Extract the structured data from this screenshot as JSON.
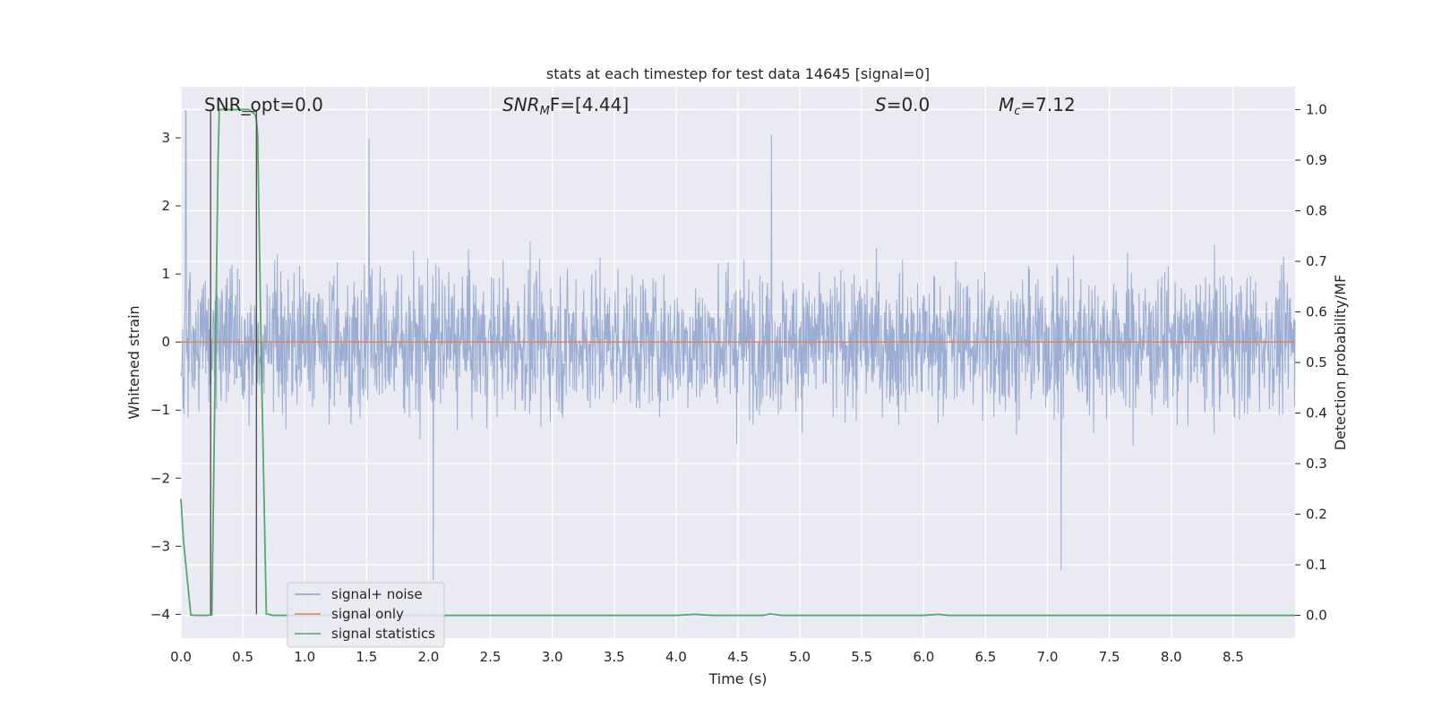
{
  "chart_data": {
    "type": "line",
    "title": "stats at each timestep for test data 14645 [signal=0]",
    "xlabel": "Time (s)",
    "ylabel": "Whitened strain",
    "y2label": "Detection probability/MF",
    "xlim": [
      0,
      9.0
    ],
    "ylim": [
      -4.35,
      3.75
    ],
    "y2lim": [
      -0.045,
      1.045
    ],
    "x_ticks": [
      0.0,
      0.5,
      1.0,
      1.5,
      2.0,
      2.5,
      3.0,
      3.5,
      4.0,
      4.5,
      5.0,
      5.5,
      6.0,
      6.5,
      7.0,
      7.5,
      8.0,
      8.5
    ],
    "x_tick_labels": [
      "0.0",
      "0.5",
      "1.0",
      "1.5",
      "2.0",
      "2.5",
      "3.0",
      "3.5",
      "4.0",
      "4.5",
      "5.0",
      "5.5",
      "6.0",
      "6.5",
      "7.0",
      "7.5",
      "8.0",
      "8.5"
    ],
    "y_ticks": [
      -4,
      -3,
      -2,
      -1,
      0,
      1,
      2,
      3
    ],
    "y_tick_labels": [
      "−4",
      "−3",
      "−2",
      "−1",
      "0",
      "1",
      "2",
      "3"
    ],
    "y2_ticks": [
      0.0,
      0.1,
      0.2,
      0.3,
      0.4,
      0.5,
      0.6,
      0.7,
      0.8,
      0.9,
      1.0
    ],
    "y2_tick_labels": [
      "0.0",
      "0.1",
      "0.2",
      "0.3",
      "0.4",
      "0.5",
      "0.6",
      "0.7",
      "0.8",
      "0.9",
      "1.0"
    ],
    "grid": true,
    "legend_position": "lower-left",
    "annotations": {
      "snr_opt": "SNR_opt=0.0",
      "snr_mf_main": "SNR",
      "snr_mf_sub": "M",
      "snr_mf_rest": "F=[4.44]",
      "s_var": "S",
      "s_rest": "=0.0",
      "mc_var": "M",
      "mc_sub": "c",
      "mc_rest": "=7.12"
    },
    "series": [
      {
        "name": "signal+ noise",
        "color": "#8da2cc",
        "axis": "left",
        "description_values": {
          "typical_band": [
            -1.5,
            1.5
          ],
          "peaks": [
            [
              0.04,
              3.4
            ],
            [
              1.52,
              3.0
            ],
            [
              4.77,
              3.05
            ],
            [
              2.04,
              -3.5
            ],
            [
              7.11,
              -3.35
            ]
          ]
        }
      },
      {
        "name": "signal only",
        "color": "#dd8452",
        "axis": "left",
        "x": [
          0.0,
          9.0
        ],
        "y": [
          0.0,
          0.0
        ]
      },
      {
        "name": "signal statistics",
        "color": "#55a868",
        "axis": "right",
        "x": [
          0.0,
          0.02,
          0.06,
          0.08,
          0.12,
          0.2,
          0.25,
          0.3,
          0.31,
          0.35,
          0.45,
          0.55,
          0.6,
          0.61,
          0.62,
          0.65,
          0.69,
          0.75,
          0.8,
          1.0,
          2.0,
          3.0,
          4.0,
          4.15,
          4.3,
          4.5,
          4.7,
          4.76,
          4.85,
          5.0,
          5.5,
          6.0,
          6.12,
          6.2,
          6.5,
          7.0,
          8.0,
          9.0
        ],
        "y": [
          0.23,
          0.15,
          0.05,
          0.001,
          0.0,
          0.0,
          0.001,
          0.9,
          1.0,
          1.0,
          1.0,
          1.0,
          0.99,
          0.98,
          0.95,
          0.5,
          0.003,
          0.0,
          0.0,
          0.0,
          0.0,
          0.0,
          0.0,
          0.002,
          0.0,
          0.0,
          0.0,
          0.003,
          0.0,
          0.0,
          0.0,
          0.0,
          0.002,
          0.0,
          0.0,
          0.0,
          0.0,
          0.0
        ]
      }
    ],
    "vertical_markers": {
      "color": "#4a4a4a",
      "x": [
        0.24,
        0.61
      ],
      "y_top": 3.4,
      "y_bottom": -4.0
    }
  }
}
